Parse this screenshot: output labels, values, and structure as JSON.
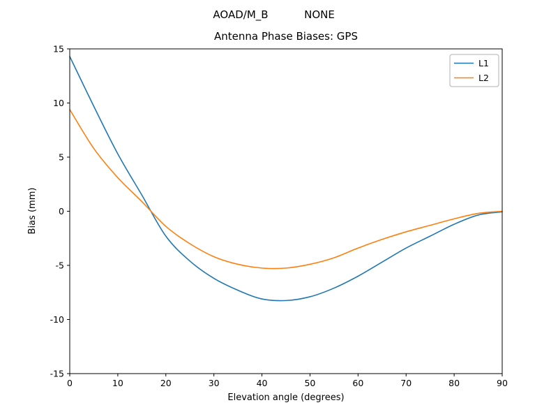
{
  "figure": {
    "suptitle_left": "AOAD/M_B",
    "suptitle_right": "NONE"
  },
  "chart_data": {
    "type": "line",
    "title": "Antenna Phase Biases: GPS",
    "suptitle": "AOAD/M_B        NONE",
    "xlabel": "Elevation angle (degrees)",
    "ylabel": "Bias (mm)",
    "xlim": [
      0,
      90
    ],
    "ylim": [
      -15,
      15
    ],
    "xticks": [
      0,
      10,
      20,
      30,
      40,
      50,
      60,
      70,
      80,
      90
    ],
    "yticks": [
      -15,
      -10,
      -5,
      0,
      5,
      10,
      15
    ],
    "grid": false,
    "legend_position": "upper right",
    "x": [
      0,
      5,
      10,
      15,
      20,
      25,
      30,
      35,
      40,
      45,
      50,
      55,
      60,
      65,
      70,
      75,
      80,
      85,
      90
    ],
    "series": [
      {
        "name": "L1",
        "color": "#1f77b4",
        "values": [
          14.3,
          9.7,
          5.3,
          1.5,
          -2.3,
          -4.6,
          -6.2,
          -7.3,
          -8.1,
          -8.25,
          -7.9,
          -7.1,
          -6.0,
          -4.7,
          -3.4,
          -2.3,
          -1.2,
          -0.35,
          -0.05
        ]
      },
      {
        "name": "L2",
        "color": "#ff7f0e",
        "values": [
          9.4,
          5.8,
          3.1,
          0.9,
          -1.4,
          -3.0,
          -4.2,
          -4.9,
          -5.25,
          -5.25,
          -4.9,
          -4.3,
          -3.4,
          -2.6,
          -1.9,
          -1.3,
          -0.7,
          -0.2,
          0.0
        ]
      }
    ]
  }
}
